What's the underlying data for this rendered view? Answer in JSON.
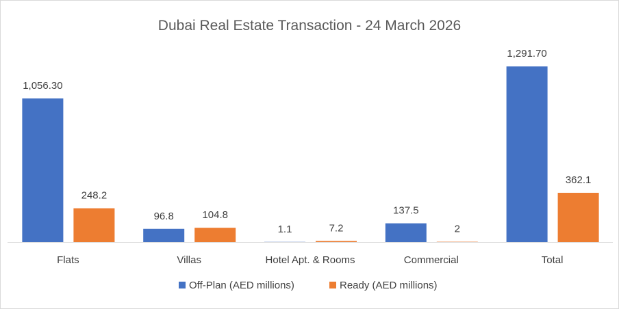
{
  "chart_data": {
    "type": "bar",
    "title": "Dubai Real Estate Transaction  - 24 March 2026",
    "categories": [
      "Flats",
      "Villas",
      "Hotel Apt. & Rooms",
      "Commercial",
      "Total"
    ],
    "series": [
      {
        "name": "Off-Plan (AED millions)",
        "color": "#4472C4",
        "values": [
          1056.3,
          96.8,
          1.1,
          137.5,
          1291.7
        ],
        "labels": [
          "1,056.30",
          "96.8",
          "1.1",
          "137.5",
          "1,291.70"
        ]
      },
      {
        "name": "Ready (AED millions)",
        "color": "#ED7D31",
        "values": [
          248.2,
          104.8,
          7.2,
          2,
          362.1
        ],
        "labels": [
          "248.2",
          "104.8",
          "7.2",
          "2",
          "362.1"
        ]
      }
    ],
    "ylim": [
      0,
      1300
    ],
    "grid": false,
    "legend_position": "bottom"
  }
}
